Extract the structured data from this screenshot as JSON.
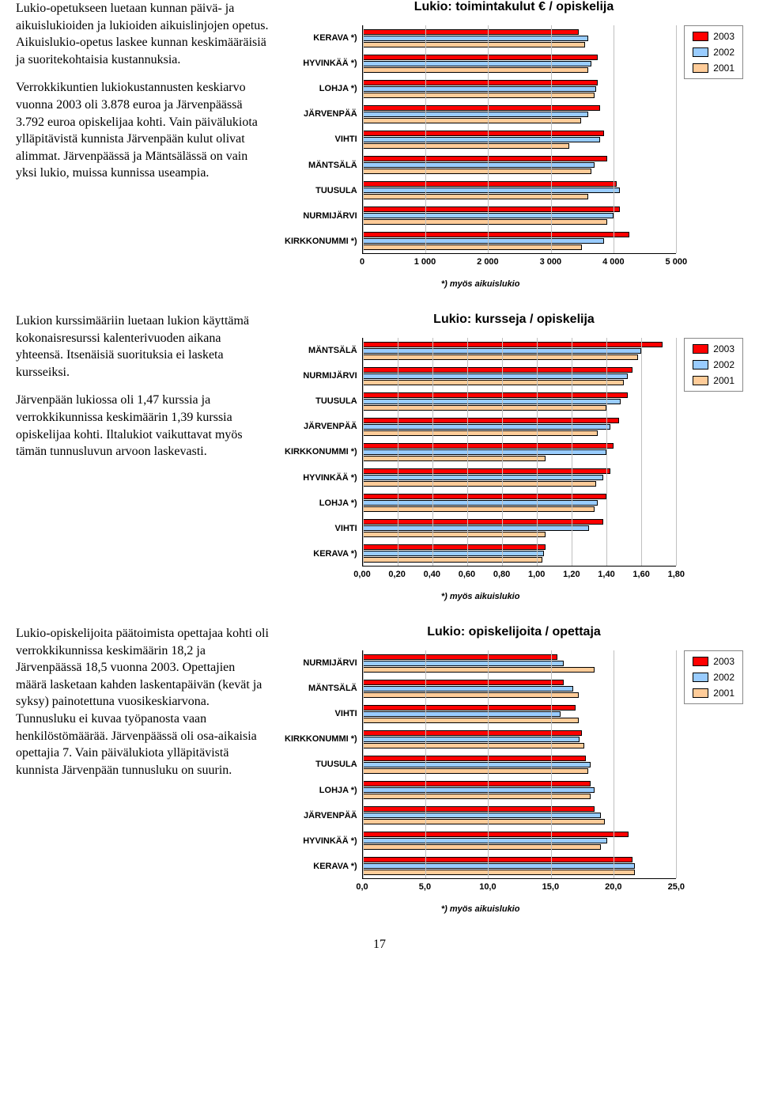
{
  "page_number": "17",
  "colors": {
    "2003": "#ff0000",
    "2002": "#99ccff",
    "2001": "#ffcc99",
    "gridline": "#c0c0c0"
  },
  "legend": {
    "2003": "2003",
    "2002": "2002",
    "2001": "2001"
  },
  "footnote": "*) myös aikuislukio",
  "chart1": {
    "title": "Lukio: toimintakulut € / opiskelija",
    "para1": "Lukio-opetukseen luetaan kunnan päivä- ja aikuislukioiden ja lukioiden aikuislinjojen opetus. Aikuislukio-opetus laskee kunnan keskimääräisiä ja suoritekohtaisia kustannuksia.",
    "para2": "Verrokkikuntien lukiokustannusten keskiarvo vuonna 2003 oli 3.878 euroa ja Järvenpäässä 3.792 euroa opiskelijaa kohti. Vain päivälukiota ylläpitävistä kunnista Järvenpään kulut olivat alimmat. Järvenpäässä ja Mäntsälässä on vain yksi lukio, muissa kunnissa useampia.",
    "x_max": 5000,
    "x_ticks": [
      "0",
      "1 000",
      "2 000",
      "3 000",
      "4 000",
      "5 000"
    ],
    "categories": [
      {
        "label": "KERAVA *)",
        "v2003": 3450,
        "v2002": 3600,
        "v2001": 3550
      },
      {
        "label": "HYVINKÄÄ *)",
        "v2003": 3750,
        "v2002": 3650,
        "v2001": 3600
      },
      {
        "label": "LOHJA *)",
        "v2003": 3750,
        "v2002": 3720,
        "v2001": 3700
      },
      {
        "label": "JÄRVENPÄÄ",
        "v2003": 3792,
        "v2002": 3600,
        "v2001": 3480
      },
      {
        "label": "VIHTI",
        "v2003": 3850,
        "v2002": 3780,
        "v2001": 3300
      },
      {
        "label": "MÄNTSÄLÄ",
        "v2003": 3900,
        "v2002": 3700,
        "v2001": 3650
      },
      {
        "label": "TUUSULA",
        "v2003": 4050,
        "v2002": 4100,
        "v2001": 3600
      },
      {
        "label": "NURMIJÄRVI",
        "v2003": 4100,
        "v2002": 4000,
        "v2001": 3900
      },
      {
        "label": "KIRKKONUMMI *)",
        "v2003": 4250,
        "v2002": 3850,
        "v2001": 3500
      }
    ]
  },
  "chart2": {
    "title": "Lukio: kursseja / opiskelija",
    "para1": "Lukion kurssimääriin luetaan lukion käyttämä kokonaisresurssi kalenterivuoden aikana yhteensä. Itsenäisiä suorituksia ei lasketa kursseiksi.",
    "para2": "Järvenpään lukiossa oli 1,47 kurssia ja verrokkikunnissa keskimäärin 1,39 kurssia opiskelijaa kohti. Iltalukiot vaikuttavat myös tämän tunnusluvun arvoon laskevasti.",
    "x_max": 1.8,
    "x_ticks": [
      "0,00",
      "0,20",
      "0,40",
      "0,60",
      "0,80",
      "1,00",
      "1,20",
      "1,40",
      "1,60",
      "1,80"
    ],
    "categories": [
      {
        "label": "MÄNTSÄLÄ",
        "v2003": 1.72,
        "v2002": 1.6,
        "v2001": 1.58
      },
      {
        "label": "NURMIJÄRVI",
        "v2003": 1.55,
        "v2002": 1.52,
        "v2001": 1.5
      },
      {
        "label": "TUUSULA",
        "v2003": 1.52,
        "v2002": 1.48,
        "v2001": 1.4
      },
      {
        "label": "JÄRVENPÄÄ",
        "v2003": 1.47,
        "v2002": 1.42,
        "v2001": 1.35
      },
      {
        "label": "KIRKKONUMMI *)",
        "v2003": 1.44,
        "v2002": 1.4,
        "v2001": 1.05
      },
      {
        "label": "HYVINKÄÄ *)",
        "v2003": 1.42,
        "v2002": 1.38,
        "v2001": 1.34
      },
      {
        "label": "LOHJA *)",
        "v2003": 1.4,
        "v2002": 1.35,
        "v2001": 1.33
      },
      {
        "label": "VIHTI",
        "v2003": 1.38,
        "v2002": 1.3,
        "v2001": 1.05
      },
      {
        "label": "KERAVA *)",
        "v2003": 1.05,
        "v2002": 1.04,
        "v2001": 1.03
      }
    ]
  },
  "chart3": {
    "title": "Lukio: opiskelijoita / opettaja",
    "para1": "Lukio-opiskelijoita päätoimista opettajaa kohti oli verrokkikunnissa keskimäärin 18,2 ja Järvenpäässä 18,5 vuonna 2003. Opettajien määrä lasketaan kahden laskentapäivän (kevät ja syksy) painotettuna vuosikeskiarvona. Tunnusluku ei kuvaa työpanosta vaan henkilöstömäärää. Järvenpäässä oli osa-aikaisia opettajia 7. Vain päivälukiota ylläpitävistä kunnista Järvenpään tunnusluku on suurin.",
    "x_max": 25.0,
    "x_ticks": [
      "0,0",
      "5,0",
      "10,0",
      "15,0",
      "20,0",
      "25,0"
    ],
    "categories": [
      {
        "label": "NURMIJÄRVI",
        "v2003": 15.5,
        "v2002": 16.0,
        "v2001": 18.5
      },
      {
        "label": "MÄNTSÄLÄ",
        "v2003": 16.0,
        "v2002": 16.8,
        "v2001": 17.2
      },
      {
        "label": "VIHTI",
        "v2003": 17.0,
        "v2002": 15.8,
        "v2001": 17.2
      },
      {
        "label": "KIRKKONUMMI *)",
        "v2003": 17.5,
        "v2002": 17.3,
        "v2001": 17.7
      },
      {
        "label": "TUUSULA",
        "v2003": 17.8,
        "v2002": 18.2,
        "v2001": 18.0
      },
      {
        "label": "LOHJA *)",
        "v2003": 18.2,
        "v2002": 18.5,
        "v2001": 18.2
      },
      {
        "label": "JÄRVENPÄÄ",
        "v2003": 18.5,
        "v2002": 19.0,
        "v2001": 19.3
      },
      {
        "label": "HYVINKÄÄ *)",
        "v2003": 21.2,
        "v2002": 19.5,
        "v2001": 19.0
      },
      {
        "label": "KERAVA *)",
        "v2003": 21.5,
        "v2002": 21.7,
        "v2001": 21.7
      }
    ]
  }
}
